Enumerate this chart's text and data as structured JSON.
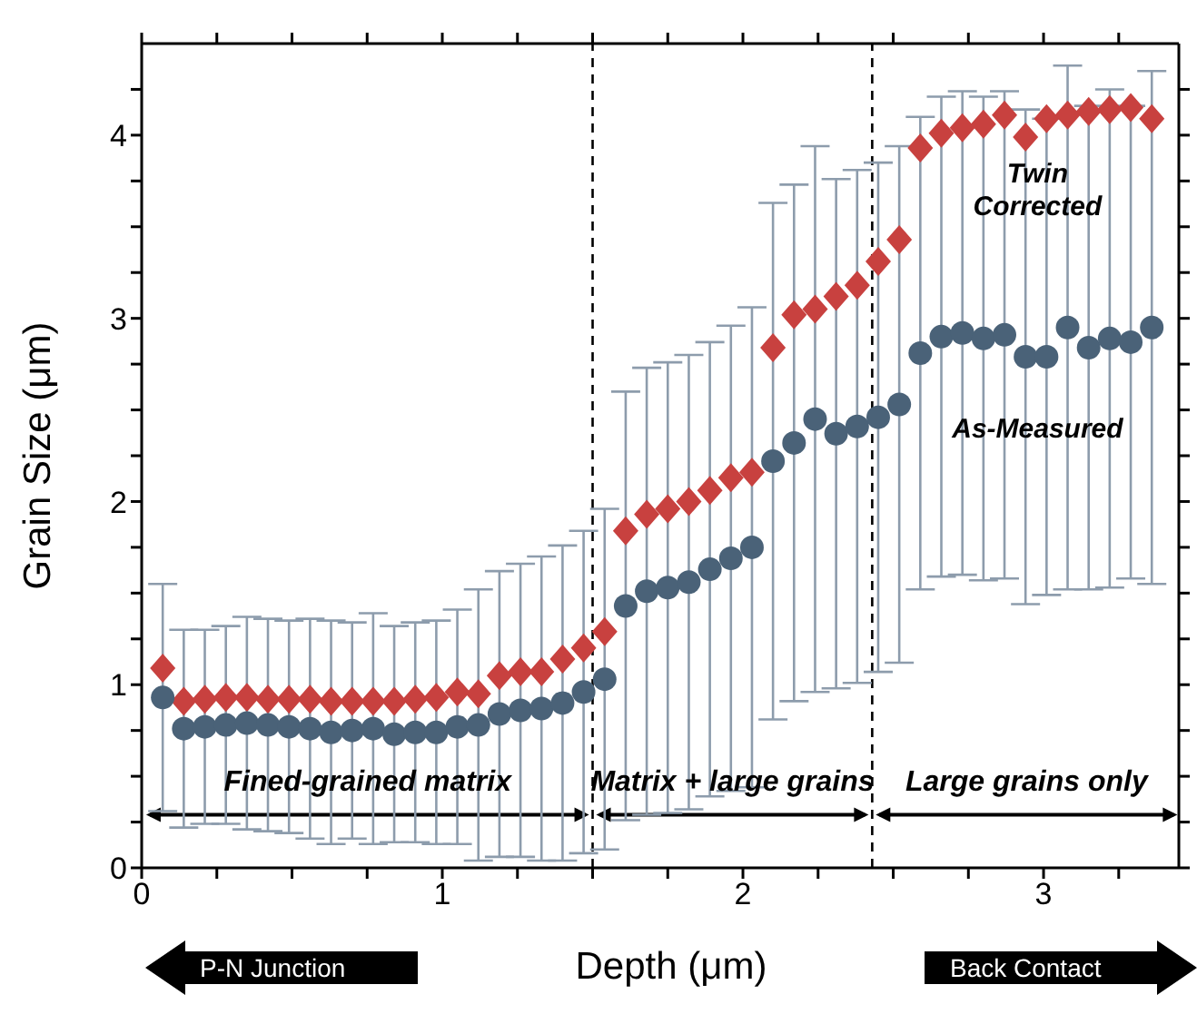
{
  "chart_data": {
    "type": "scatter",
    "xlabel": "Depth (μm)",
    "ylabel": "Grain Size (μm)",
    "x": [
      0.07,
      0.14,
      0.21,
      0.28,
      0.35,
      0.42,
      0.49,
      0.56,
      0.63,
      0.7,
      0.77,
      0.84,
      0.91,
      0.98,
      1.05,
      1.12,
      1.19,
      1.26,
      1.33,
      1.4,
      1.47,
      1.54,
      1.61,
      1.68,
      1.75,
      1.82,
      1.89,
      1.96,
      2.03,
      2.1,
      2.17,
      2.24,
      2.31,
      2.38,
      2.45,
      2.52,
      2.59,
      2.66,
      2.73,
      2.8,
      2.87,
      2.94,
      3.01,
      3.08,
      3.15,
      3.22,
      3.29,
      3.36
    ],
    "series": [
      {
        "name": "Twin Corrected",
        "color": "#c8413f",
        "marker": "diamond",
        "values": [
          1.09,
          0.91,
          0.92,
          0.93,
          0.93,
          0.92,
          0.92,
          0.92,
          0.91,
          0.91,
          0.91,
          0.91,
          0.92,
          0.93,
          0.96,
          0.95,
          1.05,
          1.07,
          1.07,
          1.14,
          1.2,
          1.29,
          1.84,
          1.93,
          1.96,
          2.0,
          2.06,
          2.13,
          2.16,
          2.84,
          3.02,
          3.05,
          3.12,
          3.18,
          3.31,
          3.43,
          3.93,
          4.01,
          4.04,
          4.06,
          4.11,
          3.99,
          4.09,
          4.11,
          4.13,
          4.14,
          4.15,
          4.09
        ]
      },
      {
        "name": "As-Measured",
        "color": "#4a6278",
        "marker": "circle",
        "values": [
          0.93,
          0.76,
          0.77,
          0.78,
          0.79,
          0.78,
          0.77,
          0.76,
          0.74,
          0.75,
          0.76,
          0.73,
          0.74,
          0.74,
          0.77,
          0.78,
          0.84,
          0.86,
          0.87,
          0.9,
          0.96,
          1.03,
          1.43,
          1.51,
          1.53,
          1.56,
          1.63,
          1.69,
          1.75,
          2.22,
          2.32,
          2.45,
          2.37,
          2.41,
          2.46,
          2.53,
          2.81,
          2.9,
          2.92,
          2.89,
          2.91,
          2.79,
          2.79,
          2.95,
          2.84,
          2.89,
          2.87,
          2.95
        ],
        "errors": [
          0.62,
          0.54,
          0.53,
          0.54,
          0.58,
          0.58,
          0.58,
          0.6,
          0.61,
          0.59,
          0.63,
          0.59,
          0.6,
          0.61,
          0.64,
          0.74,
          0.78,
          0.8,
          0.83,
          0.86,
          0.88,
          0.93,
          1.17,
          1.22,
          1.23,
          1.24,
          1.24,
          1.27,
          1.31,
          1.41,
          1.41,
          1.49,
          1.39,
          1.4,
          1.39,
          1.41,
          1.29,
          1.31,
          1.32,
          1.32,
          1.33,
          1.35,
          1.3,
          1.43,
          1.32,
          1.36,
          1.29,
          1.4
        ]
      }
    ],
    "xlim": [
      0,
      3.45
    ],
    "xticks": [
      0,
      {
        "value": 0.25,
        "label": null
      },
      {
        "value": 0.5,
        "label": null
      },
      {
        "value": 0.75,
        "label": null
      },
      1,
      {
        "value": 1.25,
        "label": null
      },
      {
        "value": 1.5,
        "label": null
      },
      {
        "value": 1.75,
        "label": null
      },
      2,
      {
        "value": 2.25,
        "label": null
      },
      {
        "value": 2.5,
        "label": null
      },
      {
        "value": 2.75,
        "label": null
      },
      3,
      {
        "value": 3.25,
        "label": null
      }
    ],
    "ylim": [
      0,
      4.5
    ],
    "yticks": [
      0,
      {
        "value": 0.25,
        "label": null
      },
      {
        "value": 0.5,
        "label": null
      },
      {
        "value": 0.75,
        "label": null
      },
      1,
      {
        "value": 1.25,
        "label": null
      },
      {
        "value": 1.5,
        "label": null
      },
      {
        "value": 1.75,
        "label": null
      },
      2,
      {
        "value": 2.25,
        "label": null
      },
      {
        "value": 2.5,
        "label": null
      },
      {
        "value": 2.75,
        "label": null
      },
      3,
      {
        "value": 3.25,
        "label": null
      },
      {
        "value": 3.5,
        "label": null
      },
      {
        "value": 3.75,
        "label": null
      },
      4,
      {
        "value": 4.25,
        "label": null
      }
    ],
    "ref_lines": [
      {
        "axis": "x",
        "value": 1.5,
        "line_style": "dashed",
        "color": "#000000"
      },
      {
        "axis": "x",
        "value": 2.43,
        "line_style": "dashed",
        "color": "#000000"
      }
    ],
    "annotations": [
      "Fined-grained matrix",
      "Matrix + large grains",
      "Large grains only",
      "P-N Junction",
      "Back Contact"
    ]
  }
}
